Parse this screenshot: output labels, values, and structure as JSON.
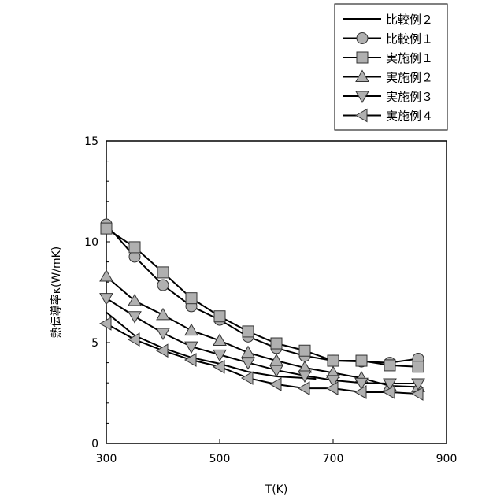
{
  "chart_data": {
    "type": "line",
    "title": "",
    "xlabel": "T(K)",
    "ylabel": "熱伝導率κ(W/mK)",
    "xlim": [
      300,
      900
    ],
    "ylim": [
      0,
      15
    ],
    "xticks": [
      "300",
      "500",
      "700",
      "900"
    ],
    "yticks": [
      "0",
      "5",
      "10",
      "15"
    ],
    "grid": false,
    "legend_position": "top-right",
    "series": [
      {
        "name": "比較例２",
        "marker": "none",
        "x": [
          300,
          350,
          400,
          450,
          500,
          550,
          600,
          650,
          670
        ],
        "y": [
          6.5,
          5.35,
          4.73,
          4.26,
          3.95,
          3.55,
          3.32,
          3.24,
          3.2
        ]
      },
      {
        "name": "比較例１",
        "marker": "circle",
        "x": [
          300,
          350,
          400,
          450,
          500,
          550,
          600,
          650,
          700,
          750,
          800,
          850
        ],
        "y": [
          10.86,
          9.26,
          7.85,
          6.8,
          6.13,
          5.3,
          4.73,
          4.34,
          4.1,
          4.06,
          4.0,
          4.2
        ]
      },
      {
        "name": "実施例１",
        "marker": "square",
        "x": [
          300,
          350,
          400,
          450,
          500,
          550,
          600,
          650,
          700,
          750,
          800,
          850
        ],
        "y": [
          10.66,
          9.73,
          8.48,
          7.2,
          6.3,
          5.55,
          4.96,
          4.6,
          4.1,
          4.1,
          3.87,
          3.8
        ]
      },
      {
        "name": "実施例２",
        "marker": "triangle-up",
        "x": [
          300,
          350,
          400,
          450,
          500,
          550,
          600,
          650,
          700,
          750,
          800,
          850
        ],
        "y": [
          8.28,
          7.07,
          6.37,
          5.6,
          5.1,
          4.5,
          4.1,
          3.75,
          3.5,
          3.24,
          2.85,
          2.8
        ]
      },
      {
        "name": "実施例３",
        "marker": "triangle-down",
        "x": [
          300,
          350,
          400,
          450,
          500,
          550,
          600,
          650,
          700,
          750,
          800,
          850
        ],
        "y": [
          7.2,
          6.3,
          5.47,
          4.8,
          4.4,
          4.0,
          3.63,
          3.36,
          3.13,
          3.0,
          2.97,
          2.97
        ]
      },
      {
        "name": "実施例４",
        "marker": "triangle-left",
        "x": [
          300,
          350,
          400,
          450,
          500,
          550,
          600,
          650,
          700,
          750,
          800,
          850
        ],
        "y": [
          5.94,
          5.15,
          4.6,
          4.14,
          3.8,
          3.24,
          2.93,
          2.73,
          2.73,
          2.54,
          2.54,
          2.46
        ]
      }
    ],
    "colors": {
      "line": "#000000",
      "marker_fill": "#b0b0b0"
    }
  }
}
